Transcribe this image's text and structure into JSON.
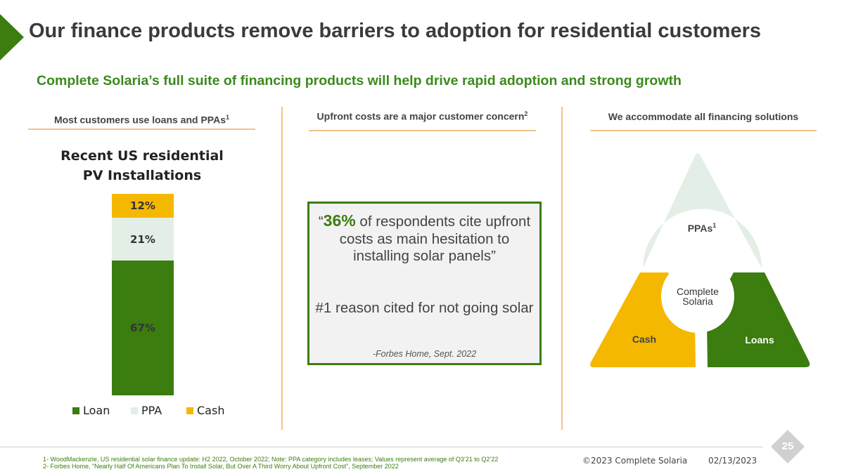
{
  "slide": {
    "title": "Our finance products remove barriers to adoption for residential customers",
    "subtitle": "Complete Solaria’s full suite of financing products will help drive rapid adoption and strong growth"
  },
  "columns": {
    "left": {
      "heading": "Most customers use loans and PPAs",
      "sup": "1"
    },
    "middle": {
      "heading": "Upfront costs are a major customer concern",
      "sup": "2"
    },
    "right": {
      "heading": "We accommodate all financing solutions"
    }
  },
  "chart_data": {
    "type": "bar",
    "stacked": true,
    "title": "Recent US residential PV Installations",
    "categories": [
      ""
    ],
    "series": [
      {
        "name": "Loan",
        "values": [
          67
        ],
        "label": "67%",
        "color": "#3b7d0f"
      },
      {
        "name": "PPA",
        "values": [
          21
        ],
        "label": "21%",
        "color": "#e3efe6"
      },
      {
        "name": "Cash",
        "values": [
          12
        ],
        "label": "12%",
        "color": "#f5b800"
      }
    ],
    "ylim": [
      0,
      100
    ],
    "legend": "bottom"
  },
  "quote": {
    "open": "“",
    "pct": "36%",
    "rest": " of respondents cite upfront costs as main hesitation to installing solar panels”",
    "reason": "#1 reason cited for not going solar",
    "source": "-Forbes Home, Sept. 2022"
  },
  "triangle": {
    "ppas_label": "PPAs",
    "ppas_sup": "1",
    "cash_label": "Cash",
    "loans_label": "Loans",
    "logo_line1": "Complete",
    "logo_line2": "Solaria",
    "colors": {
      "ppas": "#e3efe6",
      "cash": "#f5b800",
      "loans": "#3b7d0f"
    }
  },
  "footer": {
    "note1": "1- WoodMackenzie, US residential solar finance update: H2 2022, October 2022; Note: PPA category includes leases; Values represent average of Q3’21 to Q2’22",
    "note2": "2- Forbes Home, “Nearly Half Of Americans Plan To Install Solar, But Over A Third Worry About Upfront Cost”, September 2022",
    "copyright": "©2023 Complete Solaria",
    "date": "02/13/2023",
    "page": "25"
  }
}
